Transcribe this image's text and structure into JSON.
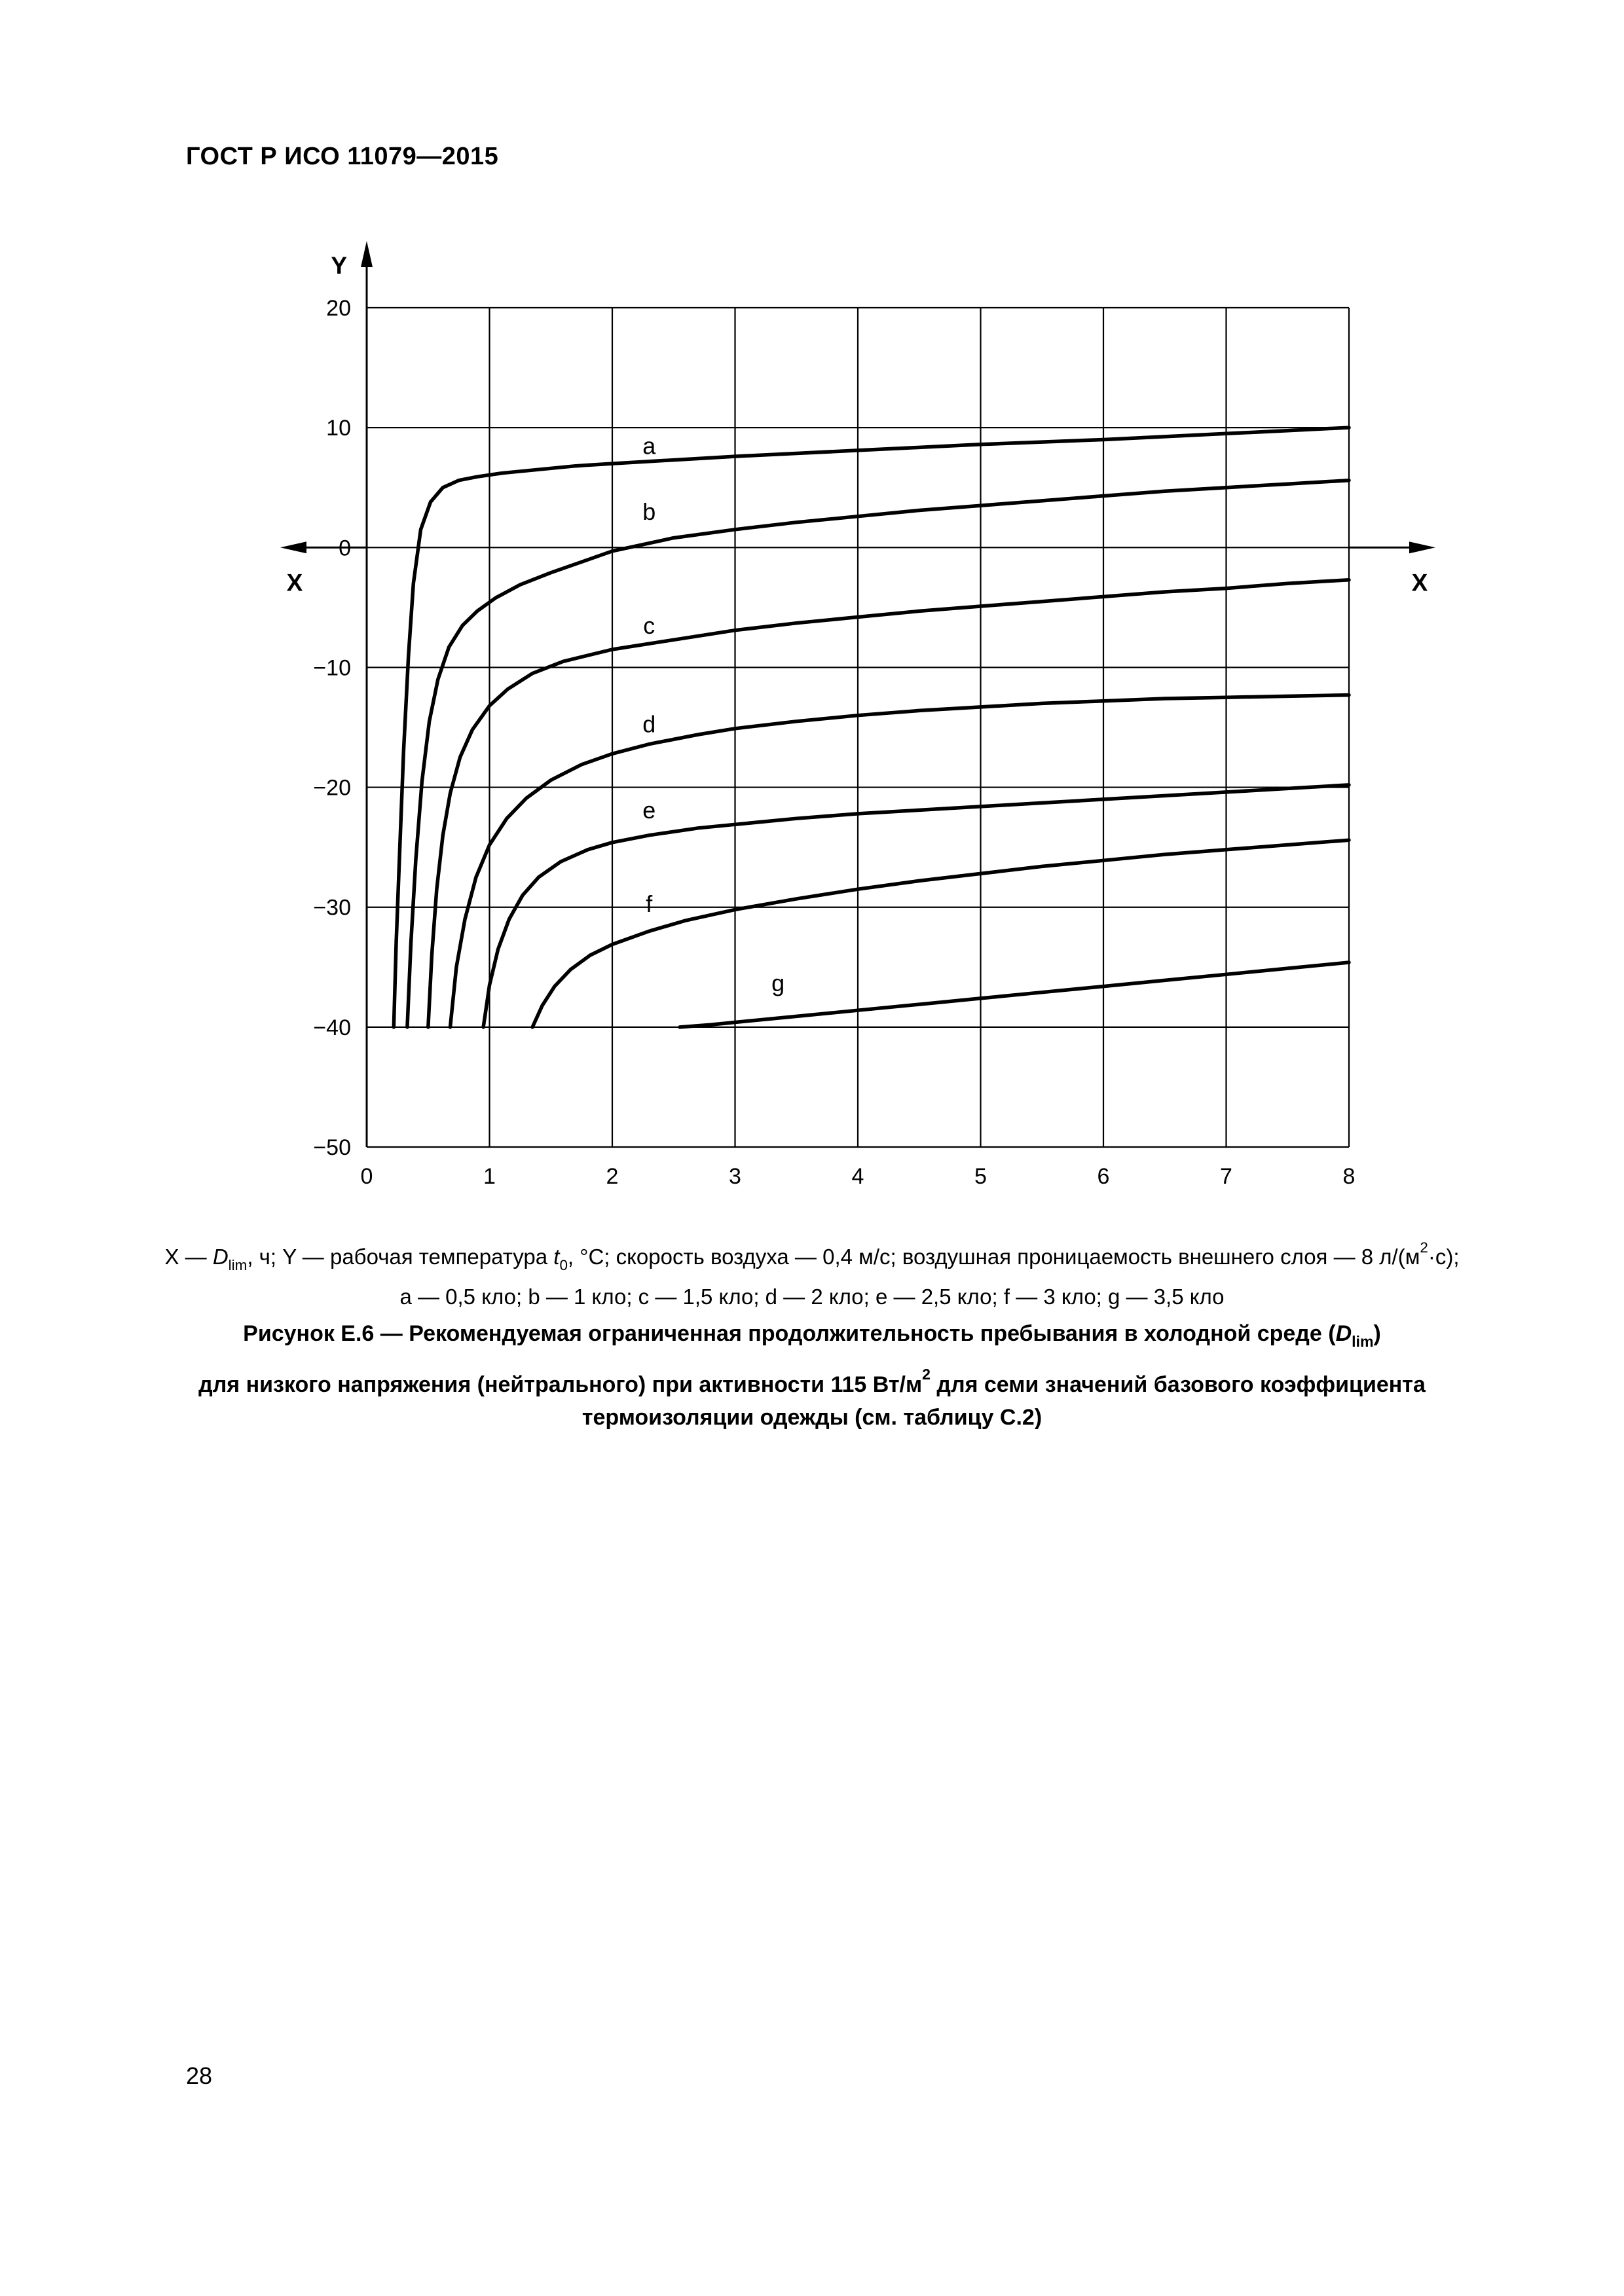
{
  "page": {
    "header": "ГОСТ Р ИСО 11079—2015",
    "number": "28"
  },
  "chart_data": {
    "type": "line",
    "title": "",
    "grid": true,
    "x_axis": {
      "label": "X",
      "range": [
        0,
        8
      ],
      "tick_values": [
        0,
        1,
        2,
        3,
        4,
        5,
        6,
        7,
        8
      ],
      "tick_labels": [
        "0",
        "1",
        "2",
        "3",
        "4",
        "5",
        "6",
        "7",
        "8"
      ]
    },
    "y_axis": {
      "label": "Y",
      "range": [
        -50,
        20
      ],
      "tick_values": [
        20,
        10,
        0,
        -10,
        -20,
        -30,
        -40,
        -50
      ],
      "tick_labels": [
        "20",
        "10",
        "0",
        "−10",
        "−20",
        "−30",
        "−40",
        "−50"
      ]
    },
    "series": [
      {
        "name": "a",
        "clo": "0,5 кло",
        "label_at": [
          2.3,
          7.8
        ],
        "points": [
          [
            0.22,
            -40
          ],
          [
            0.24,
            -33
          ],
          [
            0.27,
            -25
          ],
          [
            0.3,
            -17
          ],
          [
            0.34,
            -9
          ],
          [
            0.38,
            -3
          ],
          [
            0.44,
            1.5
          ],
          [
            0.52,
            3.8
          ],
          [
            0.62,
            5
          ],
          [
            0.75,
            5.6
          ],
          [
            0.9,
            5.9
          ],
          [
            1.1,
            6.2
          ],
          [
            1.4,
            6.5
          ],
          [
            1.7,
            6.8
          ],
          [
            2,
            7
          ],
          [
            2.5,
            7.3
          ],
          [
            3,
            7.6
          ],
          [
            3.5,
            7.85
          ],
          [
            4,
            8.1
          ],
          [
            4.5,
            8.35
          ],
          [
            5,
            8.6
          ],
          [
            5.5,
            8.8
          ],
          [
            6,
            9
          ],
          [
            6.5,
            9.25
          ],
          [
            7,
            9.5
          ],
          [
            7.5,
            9.75
          ],
          [
            8,
            10
          ]
        ]
      },
      {
        "name": "b",
        "clo": "1 кло",
        "label_at": [
          2.3,
          2.3
        ],
        "points": [
          [
            0.33,
            -40
          ],
          [
            0.36,
            -33
          ],
          [
            0.4,
            -26
          ],
          [
            0.45,
            -19.5
          ],
          [
            0.51,
            -14.5
          ],
          [
            0.58,
            -11
          ],
          [
            0.67,
            -8.3
          ],
          [
            0.78,
            -6.5
          ],
          [
            0.9,
            -5.3
          ],
          [
            1.05,
            -4.2
          ],
          [
            1.25,
            -3.1
          ],
          [
            1.5,
            -2.1
          ],
          [
            1.75,
            -1.2
          ],
          [
            2,
            -0.3
          ],
          [
            2.5,
            0.8
          ],
          [
            3,
            1.5
          ],
          [
            3.5,
            2.1
          ],
          [
            4,
            2.6
          ],
          [
            4.5,
            3.1
          ],
          [
            5,
            3.5
          ],
          [
            5.5,
            3.9
          ],
          [
            6,
            4.3
          ],
          [
            6.5,
            4.7
          ],
          [
            7,
            5
          ],
          [
            7.5,
            5.3
          ],
          [
            8,
            5.6
          ]
        ]
      },
      {
        "name": "c",
        "clo": "1,5 кло",
        "label_at": [
          2.3,
          -7.2
        ],
        "points": [
          [
            0.5,
            -40
          ],
          [
            0.53,
            -34
          ],
          [
            0.57,
            -28.5
          ],
          [
            0.62,
            -24
          ],
          [
            0.68,
            -20.5
          ],
          [
            0.76,
            -17.5
          ],
          [
            0.86,
            -15.2
          ],
          [
            1,
            -13.2
          ],
          [
            1.15,
            -11.8
          ],
          [
            1.35,
            -10.5
          ],
          [
            1.6,
            -9.5
          ],
          [
            2,
            -8.5
          ],
          [
            2.5,
            -7.7
          ],
          [
            3,
            -6.9
          ],
          [
            3.5,
            -6.3
          ],
          [
            4,
            -5.8
          ],
          [
            4.5,
            -5.3
          ],
          [
            5,
            -4.9
          ],
          [
            5.5,
            -4.5
          ],
          [
            6,
            -4.1
          ],
          [
            6.5,
            -3.7
          ],
          [
            7,
            -3.4
          ],
          [
            7.5,
            -3
          ],
          [
            8,
            -2.7
          ]
        ]
      },
      {
        "name": "d",
        "clo": "2 кло",
        "label_at": [
          2.3,
          -15.4
        ],
        "points": [
          [
            0.68,
            -40
          ],
          [
            0.73,
            -35
          ],
          [
            0.8,
            -31
          ],
          [
            0.89,
            -27.5
          ],
          [
            1,
            -24.8
          ],
          [
            1.14,
            -22.6
          ],
          [
            1.3,
            -20.9
          ],
          [
            1.5,
            -19.4
          ],
          [
            1.75,
            -18.1
          ],
          [
            2,
            -17.2
          ],
          [
            2.3,
            -16.4
          ],
          [
            2.7,
            -15.6
          ],
          [
            3,
            -15.1
          ],
          [
            3.5,
            -14.5
          ],
          [
            4,
            -14
          ],
          [
            4.5,
            -13.6
          ],
          [
            5,
            -13.3
          ],
          [
            5.5,
            -13
          ],
          [
            6,
            -12.8
          ],
          [
            6.5,
            -12.6
          ],
          [
            7,
            -12.5
          ],
          [
            7.5,
            -12.4
          ],
          [
            8,
            -12.3
          ]
        ]
      },
      {
        "name": "e",
        "clo": "2,5 кло",
        "label_at": [
          2.3,
          -22.6
        ],
        "points": [
          [
            0.95,
            -40
          ],
          [
            1,
            -36.5
          ],
          [
            1.07,
            -33.5
          ],
          [
            1.16,
            -31
          ],
          [
            1.27,
            -29
          ],
          [
            1.4,
            -27.5
          ],
          [
            1.58,
            -26.2
          ],
          [
            1.8,
            -25.2
          ],
          [
            2,
            -24.6
          ],
          [
            2.3,
            -24
          ],
          [
            2.7,
            -23.4
          ],
          [
            3,
            -23.1
          ],
          [
            3.5,
            -22.6
          ],
          [
            4,
            -22.2
          ],
          [
            4.5,
            -21.9
          ],
          [
            5,
            -21.6
          ],
          [
            5.5,
            -21.3
          ],
          [
            6,
            -21
          ],
          [
            6.5,
            -20.7
          ],
          [
            7,
            -20.4
          ],
          [
            7.5,
            -20.1
          ],
          [
            8,
            -19.8
          ]
        ]
      },
      {
        "name": "f",
        "clo": "3 кло",
        "label_at": [
          2.3,
          -30.4
        ],
        "points": [
          [
            1.35,
            -40
          ],
          [
            1.43,
            -38.2
          ],
          [
            1.53,
            -36.6
          ],
          [
            1.66,
            -35.2
          ],
          [
            1.82,
            -34
          ],
          [
            2,
            -33.1
          ],
          [
            2.3,
            -32
          ],
          [
            2.6,
            -31.1
          ],
          [
            3,
            -30.2
          ],
          [
            3.5,
            -29.3
          ],
          [
            4,
            -28.5
          ],
          [
            4.5,
            -27.8
          ],
          [
            5,
            -27.2
          ],
          [
            5.5,
            -26.6
          ],
          [
            6,
            -26.1
          ],
          [
            6.5,
            -25.6
          ],
          [
            7,
            -25.2
          ],
          [
            7.5,
            -24.8
          ],
          [
            8,
            -24.4
          ]
        ]
      },
      {
        "name": "g",
        "clo": "3,5 кло",
        "label_at": [
          3.35,
          -37.0
        ],
        "points": [
          [
            2.55,
            -40
          ],
          [
            2.8,
            -39.8
          ],
          [
            3,
            -39.6
          ],
          [
            3.5,
            -39.1
          ],
          [
            4,
            -38.6
          ],
          [
            4.5,
            -38.1
          ],
          [
            5,
            -37.6
          ],
          [
            5.5,
            -37.1
          ],
          [
            6,
            -36.6
          ],
          [
            6.5,
            -36.1
          ],
          [
            7,
            -35.6
          ],
          [
            7.5,
            -35.1
          ],
          [
            8,
            -34.6
          ]
        ]
      }
    ]
  },
  "caption": {
    "l1_1": "X — ",
    "l1_D": "D",
    "l1_Dsub": "lim",
    "l1_2": ", ч; Y — рабочая температура ",
    "l1_t": "t",
    "l1_tsub": "0",
    "l1_3": ", °С; скорость воздуха — 0,4 м/с; воздушная проницаемость внешнего слоя — 8 л/(м",
    "l1_sup": "2",
    "l1_4": "·с);",
    "line2": "а — 0,5 кло; b — 1 кло; с — 1,5 кло; d — 2 кло; е — 2,5 кло; f — 3 кло; g — 3,5 кло"
  },
  "figure_title": {
    "l1_1": "Рисунок Е.6 — Рекомендуемая ограниченная продолжительность пребывания в холодной среде (",
    "l1_D": "D",
    "l1_Dsub": "lim",
    "l1_2": ")",
    "l2_1": "для низкого напряжения (нейтрального) при активности 115 Вт/м",
    "l2_sup": "2",
    "l2_2": " для семи значений базового коэффициента",
    "line3": "термоизоляции одежды (см. таблицу С.2)"
  }
}
